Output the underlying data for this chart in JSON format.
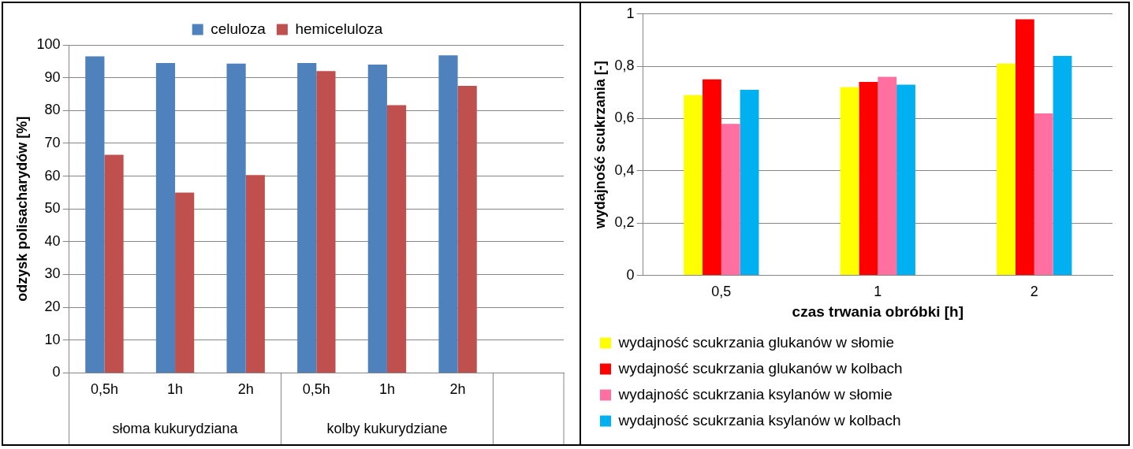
{
  "chart_data": [
    {
      "type": "bar",
      "ylabel": "odzysk polisacharydów [%]",
      "categories": [
        "0,5h",
        "1h",
        "2h",
        "0,5h",
        "1h",
        "2h",
        null
      ],
      "series": [
        {
          "name": "celuloza",
          "color": "#4f81bd",
          "values": [
            96.5,
            94.5,
            94.3,
            94.5,
            94,
            96.8,
            null
          ]
        },
        {
          "name": "hemiceluloza",
          "color": "#c0504d",
          "values": [
            66.5,
            55,
            60.3,
            92,
            81.6,
            87.5,
            null
          ]
        }
      ],
      "ylim": [
        0,
        100
      ],
      "yticks": [
        0,
        10,
        20,
        30,
        40,
        50,
        60,
        70,
        80,
        90,
        100
      ],
      "grid": "y",
      "legend": "top",
      "annotations": [
        "słoma kukurydziana",
        "kolby kukurydziane"
      ]
    },
    {
      "type": "bar",
      "ylabel": "wydajność scukrzania [-]",
      "xlabel": "czas trwania obróbki [h]",
      "categories": [
        "0,5",
        "1",
        "2"
      ],
      "series": [
        {
          "name": "wydajność scukrzania glukanów w słomie",
          "color": "#ffff00",
          "values": [
            0.69,
            0.72,
            0.81
          ]
        },
        {
          "name": "wydajność scukrzania glukanów w kolbach",
          "color": "#ff0000",
          "values": [
            0.75,
            0.74,
            0.98
          ]
        },
        {
          "name": "wydajność scukrzania ksylanów w słomie",
          "color": "#ff6f9f",
          "values": [
            0.58,
            0.76,
            0.62
          ]
        },
        {
          "name": "wydajność scukrzania ksylanów w kolbach",
          "color": "#00b0f0",
          "values": [
            0.71,
            0.73,
            0.84
          ]
        }
      ],
      "ylim": [
        0,
        1
      ],
      "yticks": [
        0,
        {
          "value": 0.2,
          "label": "0,2"
        },
        {
          "value": 0.4,
          "label": "0,4"
        },
        {
          "value": 0.6,
          "label": "0,6"
        },
        {
          "value": 0.8,
          "label": "0,8"
        },
        1
      ],
      "grid": "y",
      "legend": "bottom"
    }
  ]
}
